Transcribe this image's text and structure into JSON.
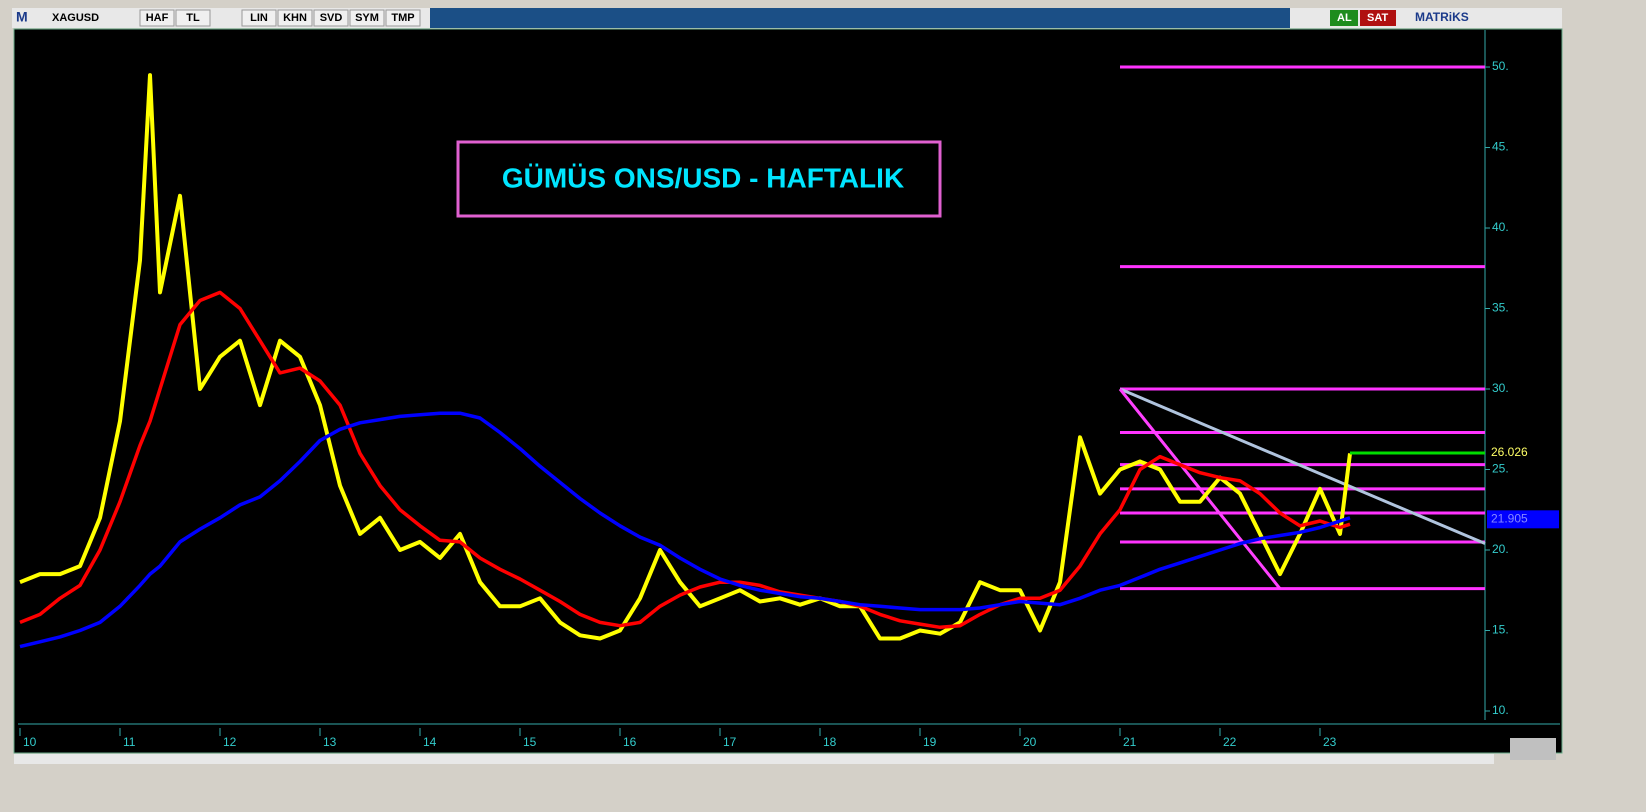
{
  "toolbar": {
    "logo": "M",
    "symbol": "XAGUSD",
    "buttons": [
      "HAF",
      "TL",
      "LIN",
      "KHN",
      "SVD",
      "SYM",
      "TMP"
    ],
    "buy": "AL",
    "sell": "SAT",
    "brand": "MATRiKS"
  },
  "chart_data": {
    "type": "line",
    "title": "GÜMÜS ONS/USD - HAFTALIK",
    "yaxis_position": "right",
    "x": [
      10.0,
      10.2,
      10.4,
      10.6,
      10.8,
      11.0,
      11.2,
      11.3,
      11.4,
      11.6,
      11.8,
      12.0,
      12.2,
      12.4,
      12.6,
      12.8,
      13.0,
      13.2,
      13.4,
      13.6,
      13.8,
      14.0,
      14.2,
      14.4,
      14.6,
      14.8,
      15.0,
      15.2,
      15.4,
      15.6,
      15.8,
      16.0,
      16.2,
      16.4,
      16.6,
      16.8,
      17.0,
      17.2,
      17.4,
      17.6,
      17.8,
      18.0,
      18.2,
      18.4,
      18.6,
      18.8,
      19.0,
      19.2,
      19.4,
      19.6,
      19.8,
      20.0,
      20.2,
      20.4,
      20.6,
      20.8,
      21.0,
      21.2,
      21.4,
      21.6,
      21.8,
      22.0,
      22.2,
      22.4,
      22.6,
      22.8,
      23.0,
      23.2,
      23.3
    ],
    "series": [
      {
        "color": "#ffff00",
        "values": [
          18,
          18.5,
          18.5,
          19,
          22,
          28,
          38,
          49.5,
          36,
          42,
          30,
          32,
          33,
          29,
          33,
          32,
          29,
          24,
          21,
          22,
          20,
          20.5,
          19.5,
          21,
          18,
          16.5,
          16.5,
          17,
          15.5,
          14.7,
          14.5,
          15,
          17,
          20,
          18,
          16.5,
          17,
          17.5,
          16.8,
          17,
          16.6,
          17,
          16.5,
          16.5,
          14.5,
          14.5,
          15,
          14.8,
          15.5,
          18,
          17.5,
          17.5,
          15,
          18,
          27,
          23.5,
          25,
          25.5,
          25,
          23,
          23,
          24.5,
          23.5,
          21,
          18.5,
          21,
          23.8,
          21,
          26
        ]
      },
      {
        "color": "#ff0000",
        "values": [
          15.5,
          16,
          17,
          17.8,
          20,
          23,
          26.5,
          28,
          30,
          34,
          35.5,
          36,
          35,
          33,
          31,
          31.3,
          30.5,
          29,
          26,
          24,
          22.5,
          21.5,
          20.6,
          20.5,
          19.5,
          18.8,
          18.2,
          17.5,
          16.8,
          16,
          15.5,
          15.3,
          15.5,
          16.5,
          17.2,
          17.7,
          18,
          18,
          17.8,
          17.4,
          17.2,
          17,
          16.8,
          16.5,
          16,
          15.6,
          15.4,
          15.2,
          15.3,
          16,
          16.6,
          17,
          17,
          17.5,
          19,
          21,
          22.5,
          25,
          25.8,
          25.3,
          24.8,
          24.5,
          24.3,
          23.5,
          22.3,
          21.5,
          21.8,
          21.4,
          21.6
        ]
      },
      {
        "color": "#0000ff",
        "values": [
          14,
          14.3,
          14.6,
          15,
          15.5,
          16.5,
          17.8,
          18.5,
          19,
          20.5,
          21.3,
          22,
          22.8,
          23.3,
          24.3,
          25.5,
          26.8,
          27.5,
          27.9,
          28.1,
          28.3,
          28.4,
          28.5,
          28.5,
          28.2,
          27.3,
          26.3,
          25.2,
          24.2,
          23.2,
          22.3,
          21.5,
          20.8,
          20.3,
          19.5,
          18.8,
          18.2,
          17.8,
          17.5,
          17.3,
          17.1,
          17,
          16.8,
          16.6,
          16.5,
          16.4,
          16.3,
          16.3,
          16.3,
          16.4,
          16.6,
          16.8,
          16.7,
          16.6,
          17,
          17.5,
          17.8,
          18.3,
          18.8,
          19.2,
          19.6,
          20,
          20.4,
          20.7,
          20.9,
          21.1,
          21.4,
          21.8,
          22
        ]
      }
    ],
    "levels_from": 21,
    "levels_color": "#ff33ff",
    "levels": [
      50,
      37.6,
      30,
      27.3,
      25.3,
      23.8,
      22.3,
      20.5,
      17.6
    ],
    "trendlines": [
      {
        "x": [
          21,
          24.65
        ],
        "y": [
          30,
          20.4
        ],
        "color": "#b0c4de"
      },
      {
        "x": [
          21,
          22.6
        ],
        "y": [
          30,
          17.6
        ],
        "color": "#ff40ff"
      }
    ],
    "last_values": [
      {
        "value": 26.026,
        "label": "26.026",
        "color": "#00dd00",
        "from": 23.3
      },
      {
        "value": 21.905,
        "label": "21.905",
        "color": "#0000ff"
      }
    ],
    "xlim": [
      9.98,
      24.65
    ],
    "ylim": [
      9.44,
      52.3
    ],
    "xticks": [
      10,
      11,
      12,
      13,
      14,
      15,
      16,
      17,
      18,
      19,
      20,
      21,
      22,
      23
    ],
    "yticks": [
      {
        "value": 10,
        "label": "10."
      },
      {
        "value": 15,
        "label": "15."
      },
      {
        "value": 20,
        "label": "20."
      },
      {
        "value": 25,
        "label": "25."
      },
      {
        "value": 30,
        "label": "30."
      },
      {
        "value": 35,
        "label": "35."
      },
      {
        "value": 40,
        "label": "40."
      },
      {
        "value": 45,
        "label": "45."
      },
      {
        "value": 50,
        "label": "50."
      }
    ]
  }
}
